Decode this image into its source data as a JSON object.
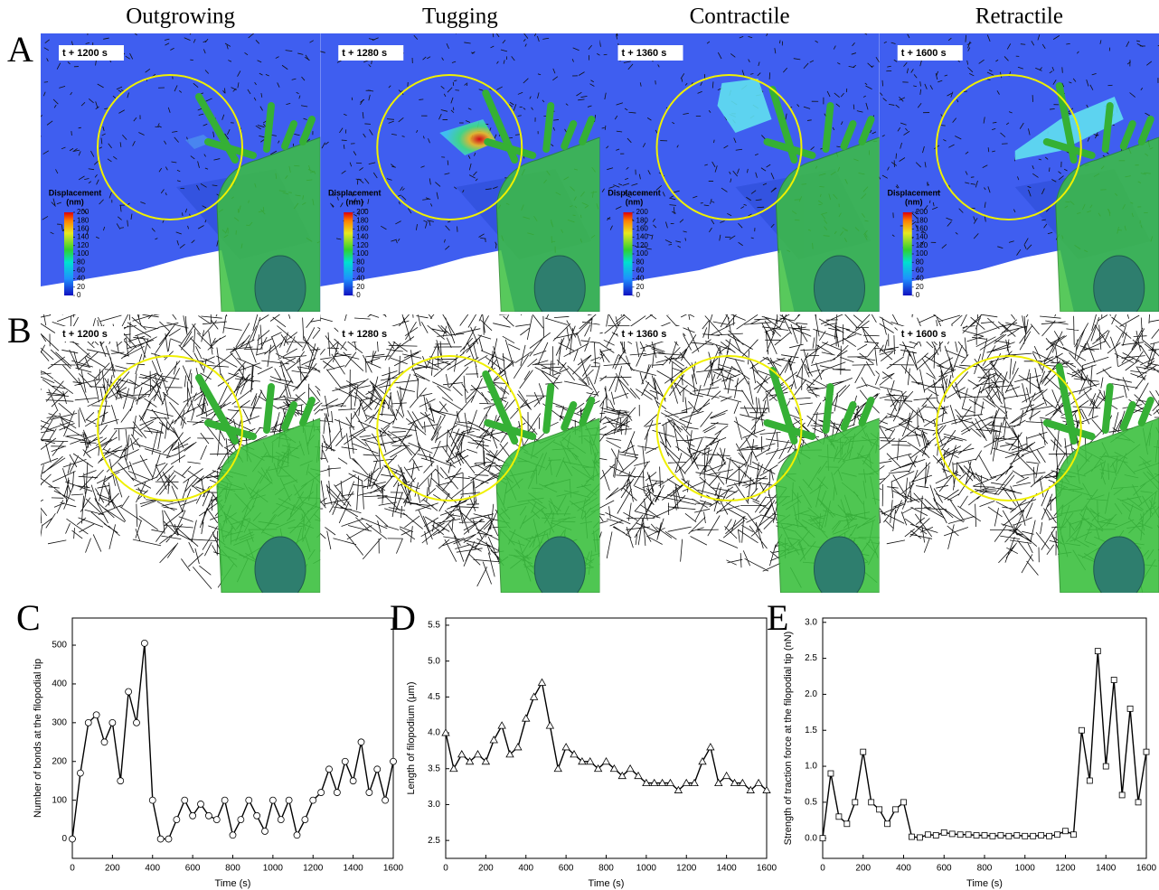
{
  "columns": [
    "Outgrowing",
    "Tugging",
    "Contractile",
    "Retractile"
  ],
  "rows": [
    {
      "label": "A",
      "times": [
        "t + 1200 s",
        "t + 1280 s",
        "t + 1360 s",
        "t + 1600 s"
      ]
    },
    {
      "label": "B",
      "times": [
        "t + 1200 s",
        "t + 1280 s",
        "t + 1360 s",
        "t + 1600 s"
      ]
    }
  ],
  "colorbar": {
    "title": "Displacement",
    "unit": "(nm)",
    "ticks": [
      0,
      20,
      40,
      60,
      80,
      100,
      120,
      140,
      160,
      180,
      200
    ]
  },
  "chart_data": [
    {
      "type": "line",
      "panel_label": "C",
      "xlabel": "Time (s)",
      "ylabel": "Number of bonds at the filopodial tip",
      "color": "#000000",
      "marker": "circle",
      "x": [
        0,
        40,
        80,
        120,
        160,
        200,
        240,
        280,
        320,
        360,
        400,
        440,
        480,
        520,
        560,
        600,
        640,
        680,
        720,
        760,
        800,
        840,
        880,
        920,
        960,
        1000,
        1040,
        1080,
        1120,
        1160,
        1200,
        1240,
        1280,
        1320,
        1360,
        1400,
        1440,
        1480,
        1520,
        1560,
        1600
      ],
      "values": [
        0,
        170,
        300,
        320,
        250,
        300,
        150,
        380,
        300,
        505,
        100,
        0,
        0,
        50,
        100,
        60,
        90,
        60,
        50,
        100,
        10,
        50,
        100,
        60,
        20,
        100,
        50,
        100,
        10,
        50,
        100,
        120,
        180,
        120,
        200,
        150,
        250,
        120,
        180,
        100,
        200
      ],
      "xlim": [
        0,
        1600
      ],
      "xticks": [
        0,
        200,
        400,
        600,
        800,
        1000,
        1200,
        1400,
        1600
      ],
      "ylim": [
        -50,
        570
      ],
      "yticks": [
        0,
        100,
        200,
        300,
        400,
        500
      ]
    },
    {
      "type": "line",
      "panel_label": "D",
      "xlabel": "Time (s)",
      "ylabel": "Length of filopodium (μm)",
      "color": "#000000",
      "marker": "triangle",
      "x": [
        0,
        40,
        80,
        120,
        160,
        200,
        240,
        280,
        320,
        360,
        400,
        440,
        480,
        520,
        560,
        600,
        640,
        680,
        720,
        760,
        800,
        840,
        880,
        920,
        960,
        1000,
        1040,
        1080,
        1120,
        1160,
        1200,
        1240,
        1280,
        1320,
        1360,
        1400,
        1440,
        1480,
        1520,
        1560,
        1600
      ],
      "values": [
        4.0,
        3.5,
        3.7,
        3.6,
        3.7,
        3.6,
        3.9,
        4.1,
        3.7,
        3.8,
        4.2,
        4.5,
        4.7,
        4.1,
        3.5,
        3.8,
        3.7,
        3.6,
        3.6,
        3.5,
        3.6,
        3.5,
        3.4,
        3.5,
        3.4,
        3.3,
        3.3,
        3.3,
        3.3,
        3.2,
        3.3,
        3.3,
        3.6,
        3.8,
        3.3,
        3.4,
        3.3,
        3.3,
        3.2,
        3.3,
        3.2
      ],
      "xlim": [
        0,
        1600
      ],
      "xticks": [
        0,
        200,
        400,
        600,
        800,
        1000,
        1200,
        1400,
        1600
      ],
      "ylim": [
        2.25,
        5.6
      ],
      "yticks": [
        2.5,
        {
          "value": 3,
          "label": "3.0"
        },
        3.5,
        {
          "value": 4,
          "label": "4.0"
        },
        4.5,
        {
          "value": 5,
          "label": "5.0"
        },
        5.5
      ]
    },
    {
      "type": "line",
      "panel_label": "E",
      "xlabel": "Time (s)",
      "ylabel": "Strength of traction force at the filopodial tip (nN)",
      "color": "#000000",
      "marker": "square",
      "x": [
        0,
        40,
        80,
        120,
        160,
        200,
        240,
        280,
        320,
        360,
        400,
        440,
        480,
        520,
        560,
        600,
        640,
        680,
        720,
        760,
        800,
        840,
        880,
        920,
        960,
        1000,
        1040,
        1080,
        1120,
        1160,
        1200,
        1240,
        1280,
        1320,
        1360,
        1400,
        1440,
        1480,
        1520,
        1560,
        1600
      ],
      "values": [
        0,
        0.9,
        0.3,
        0.2,
        0.5,
        1.2,
        0.5,
        0.4,
        0.2,
        0.4,
        0.5,
        0.02,
        0.01,
        0.05,
        0.04,
        0.08,
        0.06,
        0.05,
        0.05,
        0.04,
        0.04,
        0.03,
        0.04,
        0.03,
        0.04,
        0.03,
        0.03,
        0.04,
        0.03,
        0.05,
        0.1,
        0.05,
        1.5,
        0.8,
        2.6,
        1.0,
        2.2,
        0.6,
        1.8,
        0.5,
        1.2
      ],
      "xlim": [
        0,
        1600
      ],
      "xticks": [
        0,
        200,
        400,
        600,
        800,
        1000,
        1200,
        1400,
        1600
      ],
      "ylim": [
        -0.28,
        3.06
      ],
      "yticks": [
        {
          "value": 0,
          "label": "0.0"
        },
        0.5,
        {
          "value": 1,
          "label": "1.0"
        },
        1.5,
        {
          "value": 2,
          "label": "2.0"
        },
        2.5,
        {
          "value": 3,
          "label": "3.0"
        }
      ]
    }
  ]
}
